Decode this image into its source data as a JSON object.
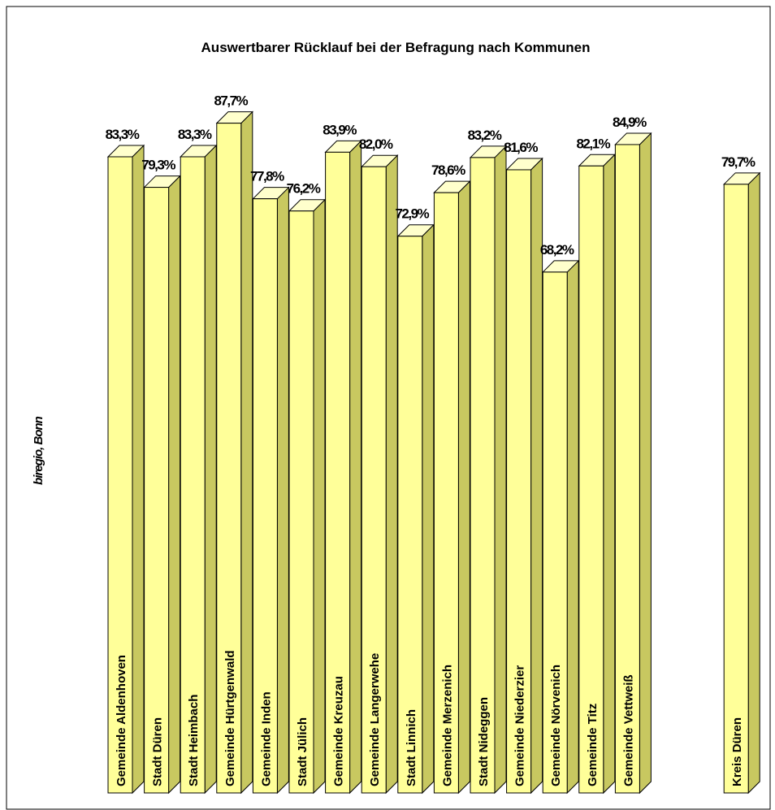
{
  "chart_data": {
    "type": "bar3d",
    "title": "Auswertbarer Rücklauf bei der Befragung nach Kommunen",
    "side_note": "biregio, Bonn",
    "categories": [
      "Gemeinde Aldenhoven",
      "Stadt Düren",
      "Stadt Heimbach",
      "Gemeinde Hürtgenwald",
      "Gemeinde Inden",
      "Stadt Jülich",
      "Gemeinde Kreuzau",
      "Gemeinde Langerwehe",
      "Stadt Linnich",
      "Gemeinde Merzenich",
      "Stadt Nideggen",
      "Gemeinde Niederzier",
      "Gemeinde Nörvenich",
      "Gemeinde Titz",
      "Gemeinde Vettweiß",
      null,
      null,
      "Kreis Düren"
    ],
    "values": [
      83.3,
      79.3,
      83.3,
      87.7,
      77.8,
      76.2,
      83.9,
      82.0,
      72.9,
      78.6,
      83.2,
      81.6,
      68.2,
      82.1,
      84.9,
      null,
      null,
      79.7
    ],
    "value_labels": [
      "83,3%",
      "79,3%",
      "83,3%",
      "87,7%",
      "77,8%",
      "76,2%",
      "83,9%",
      "82,0%",
      "72,9%",
      "78,6%",
      "83,2%",
      "81,6%",
      "68,2%",
      "82,1%",
      "84,9%",
      null,
      null,
      "79,7%"
    ],
    "color": "#ffff99",
    "ylim": [
      0,
      100
    ]
  }
}
